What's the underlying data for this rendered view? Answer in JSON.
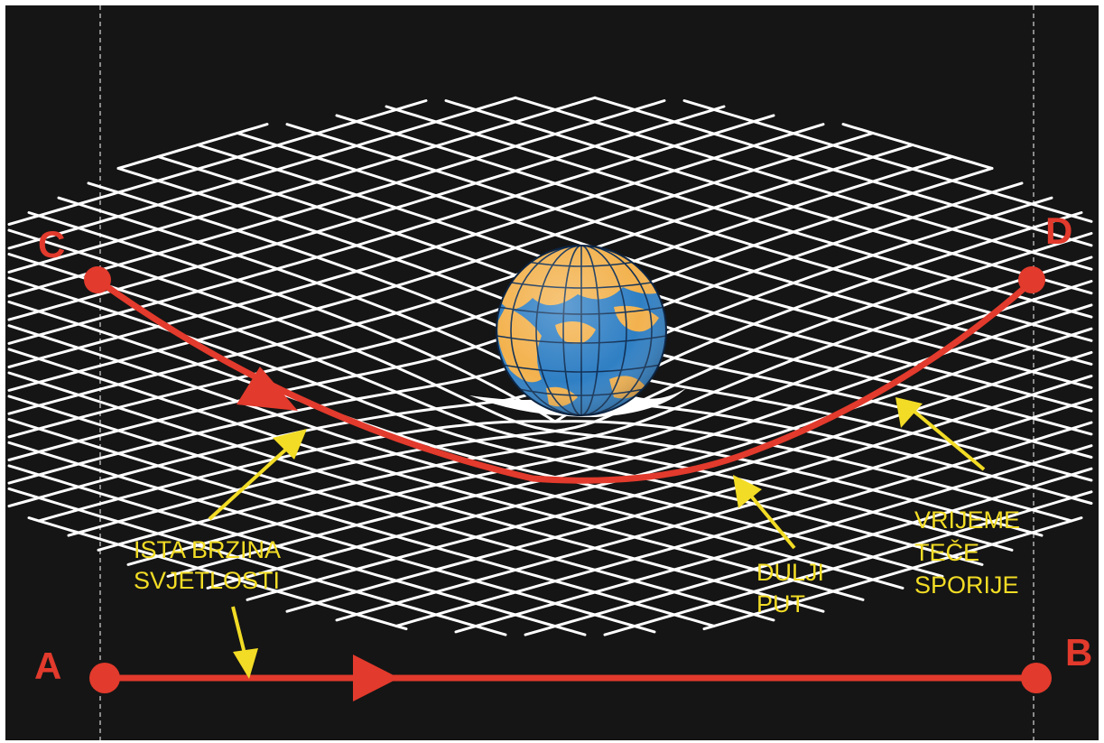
{
  "points": {
    "a": "A",
    "b": "B",
    "c": "C",
    "d": "D"
  },
  "labels": {
    "same_speed": [
      "ISTA BRZINA",
      "SVJETLOSTI"
    ],
    "longer_path": [
      "DULJI",
      "PUT"
    ],
    "slower_time": [
      "VRIJEME",
      "TEČE",
      "SPORIJE"
    ]
  },
  "colors": {
    "background": "#151515",
    "grid": "#ffffff",
    "path": "#e23a2c",
    "annotation": "#f2dc25",
    "ocean": "#2f7fc4",
    "land": "#f3b24e"
  },
  "icons": {
    "planet": "earth-globe-icon"
  }
}
